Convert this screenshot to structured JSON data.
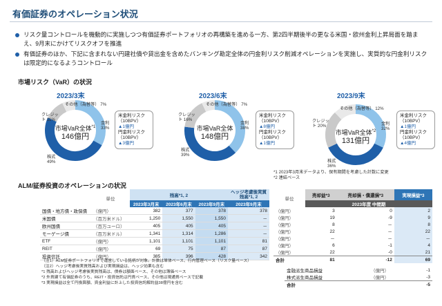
{
  "page": {
    "title": "有価証券のオペレーション状況"
  },
  "bullets": [
    "リスク量コントロールを機動的に実施しつつ有価証券ポートフォリオの再構築を進める一方、第2四半期後半の更なる米国・欧州金利上昇局面を踏まえ、9月末にかけてリスクオフを推進",
    "有価証券のほか、下記に含まれない円建社債や貸出金を含めたバンキング勘定全体の円金利リスク削減オペレーションを実施し、実質的な円金利リスクは限定的になるようコントロール"
  ],
  "var_section": {
    "title": "市場リスク（VaR）の状況",
    "center_label": "市場VaR全体",
    "notes": [
      "*1 2023年3月末データより、保有期間を考慮した計数に変更",
      "*2 連結ベース"
    ],
    "periods": [
      {
        "year": "2023/3末",
        "center_suffix": "*1",
        "total": "146億円",
        "labels": {
          "other": "その他（為替等） 7%",
          "credit": "クレジット 11%",
          "rate": "金利 33%",
          "equity": "株式 49%"
        },
        "rate_title": "米金利リスク",
        "rate_unit1": "（10BPV）",
        "rate_val1": "▲1億円",
        "rate_title2": "円金利リスク",
        "rate_unit2": "（10BPV）",
        "rate_val2": "▲3億円"
      },
      {
        "year": "2023/6末",
        "center_suffix": "",
        "total": "148億円",
        "labels": {
          "other": "その他（為替等） 7%",
          "credit": "クレジット 16%",
          "rate": "金利 38%",
          "equity": "株式 39%"
        },
        "rate_title": "米金利リスク",
        "rate_unit1": "（10BPV）",
        "rate_val1": "▲8億円",
        "rate_title2": "円金利リスク",
        "rate_unit2": "（10BPV）",
        "rate_val2": "▲1億円"
      },
      {
        "year": "2023/9末",
        "center_suffix": "*2",
        "total": "131億円",
        "labels": {
          "other": "その他（為替等） 12%",
          "credit": "クレジット 20%",
          "rate": "金利 32%",
          "equity": "株式 36%"
        },
        "rate_title": "米金利リスク",
        "rate_unit1": "（10BPV）",
        "rate_val1": "▲1億円",
        "rate_title2": "円金利リスク",
        "rate_unit2": "（10BPV）",
        "rate_val2": "▲4億円"
      }
    ]
  },
  "alm": {
    "title": "ALM/証券投資のオペレーションの状況",
    "zandaka_header": "残高*1, 2",
    "hedge_header": "ヘッジ考慮後実質残高*1, 2",
    "unit_header": "単位",
    "cols": [
      "2023年3月末",
      "2023年6月末",
      "2023年9月末",
      "2023年9月末"
    ],
    "rows": [
      {
        "label": "国債・地方債・政保債",
        "unit": "（億円）",
        "v": [
          "382",
          "377",
          "378",
          "378"
        ]
      },
      {
        "label": "米国債",
        "unit": "（百万米ドル）",
        "v": [
          "1,250",
          "1,550",
          "1,550",
          "－"
        ]
      },
      {
        "label": "欧州国債",
        "unit": "（百万ユーロ）",
        "v": [
          "405",
          "405",
          "405",
          "－"
        ]
      },
      {
        "label": "モーゲージ債",
        "unit": "（百万米ドル）",
        "v": [
          "1,341",
          "1,314",
          "1,286",
          "－"
        ]
      },
      {
        "label": "ETF",
        "unit": "（億円）",
        "v": [
          "1,101",
          "1,101",
          "1,101",
          "81"
        ]
      },
      {
        "label": "REIT",
        "unit": "（億円）",
        "v": [
          "69",
          "75",
          "87",
          "87"
        ]
      },
      {
        "label": "投資信託",
        "unit": "（億円）",
        "v": [
          "385",
          "396",
          "428",
          "342"
        ]
      }
    ],
    "footnotes": [
      "（注1）ALM証券ポートフォリオで運営している銘柄が対象。計数は単体ベース、行内管理ベース（リスク量ベース）",
      "（注2）ヘッジ考慮後実質残高および実現損益は、ヘッジ効果も含む",
      "*1 残高およびヘッジ考慮後実質残高は、債券は額面ベース、その他は簿価ベース",
      "*2 外貨建て有価証券のうち、REIT・投資信託は円貨ベース、その他は現通貨ベースで記載",
      "*3 実現損益は全て円換算額、資金利益に計上した投資信託解約益38億円を含む"
    ]
  },
  "pl": {
    "headers": [
      "売却益*3",
      "売却損・償還損*3",
      "実現損益*3"
    ],
    "unit_header": "単位",
    "subheader": "2023年度 中間期",
    "rows": [
      {
        "unit": "（億円）",
        "v": [
          "3",
          "0",
          "2"
        ]
      },
      {
        "unit": "（億円）",
        "v": [
          "19",
          "-9",
          "9"
        ]
      },
      {
        "unit": "（億円）",
        "v": [
          "8",
          "－",
          "8"
        ]
      },
      {
        "unit": "（億円）",
        "v": [
          "22",
          "－",
          "22"
        ]
      },
      {
        "unit": "（億円）",
        "v": [
          "－",
          "－",
          "－"
        ]
      },
      {
        "unit": "（億円）",
        "v": [
          "6",
          "-1",
          "4"
        ]
      },
      {
        "unit": "（億円）",
        "v": [
          "22",
          "-0",
          "21"
        ]
      }
    ],
    "total_label": "合計",
    "total": [
      "81",
      "-12",
      "69"
    ],
    "extra_rows": [
      {
        "label": "金融派生商品損益",
        "unit": "（億円）",
        "v": "-1"
      },
      {
        "label": "株式派生商品損益",
        "unit": "（億円）",
        "v": "-3"
      }
    ],
    "extra_total_label": "合計",
    "extra_total": "-5"
  },
  "colors": {
    "rate": "#8fc3ea",
    "equity": "#1f5fa8",
    "credit": "#c9c9c9",
    "other": "#e9e9e9"
  }
}
